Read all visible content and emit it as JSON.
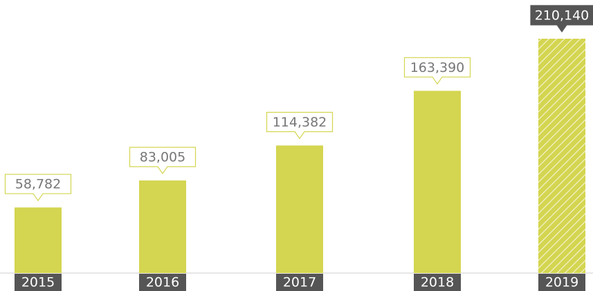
{
  "chart_data": {
    "type": "bar",
    "categories": [
      "2015",
      "2016",
      "2017",
      "2018",
      "2019"
    ],
    "values": [
      58782,
      83005,
      114382,
      163390,
      210140
    ],
    "value_labels": [
      "58,782",
      "83,005",
      "114,382",
      "163,390",
      "210,140"
    ],
    "color": "#d4d550",
    "hatch": [
      false,
      false,
      false,
      false,
      true
    ]
  }
}
